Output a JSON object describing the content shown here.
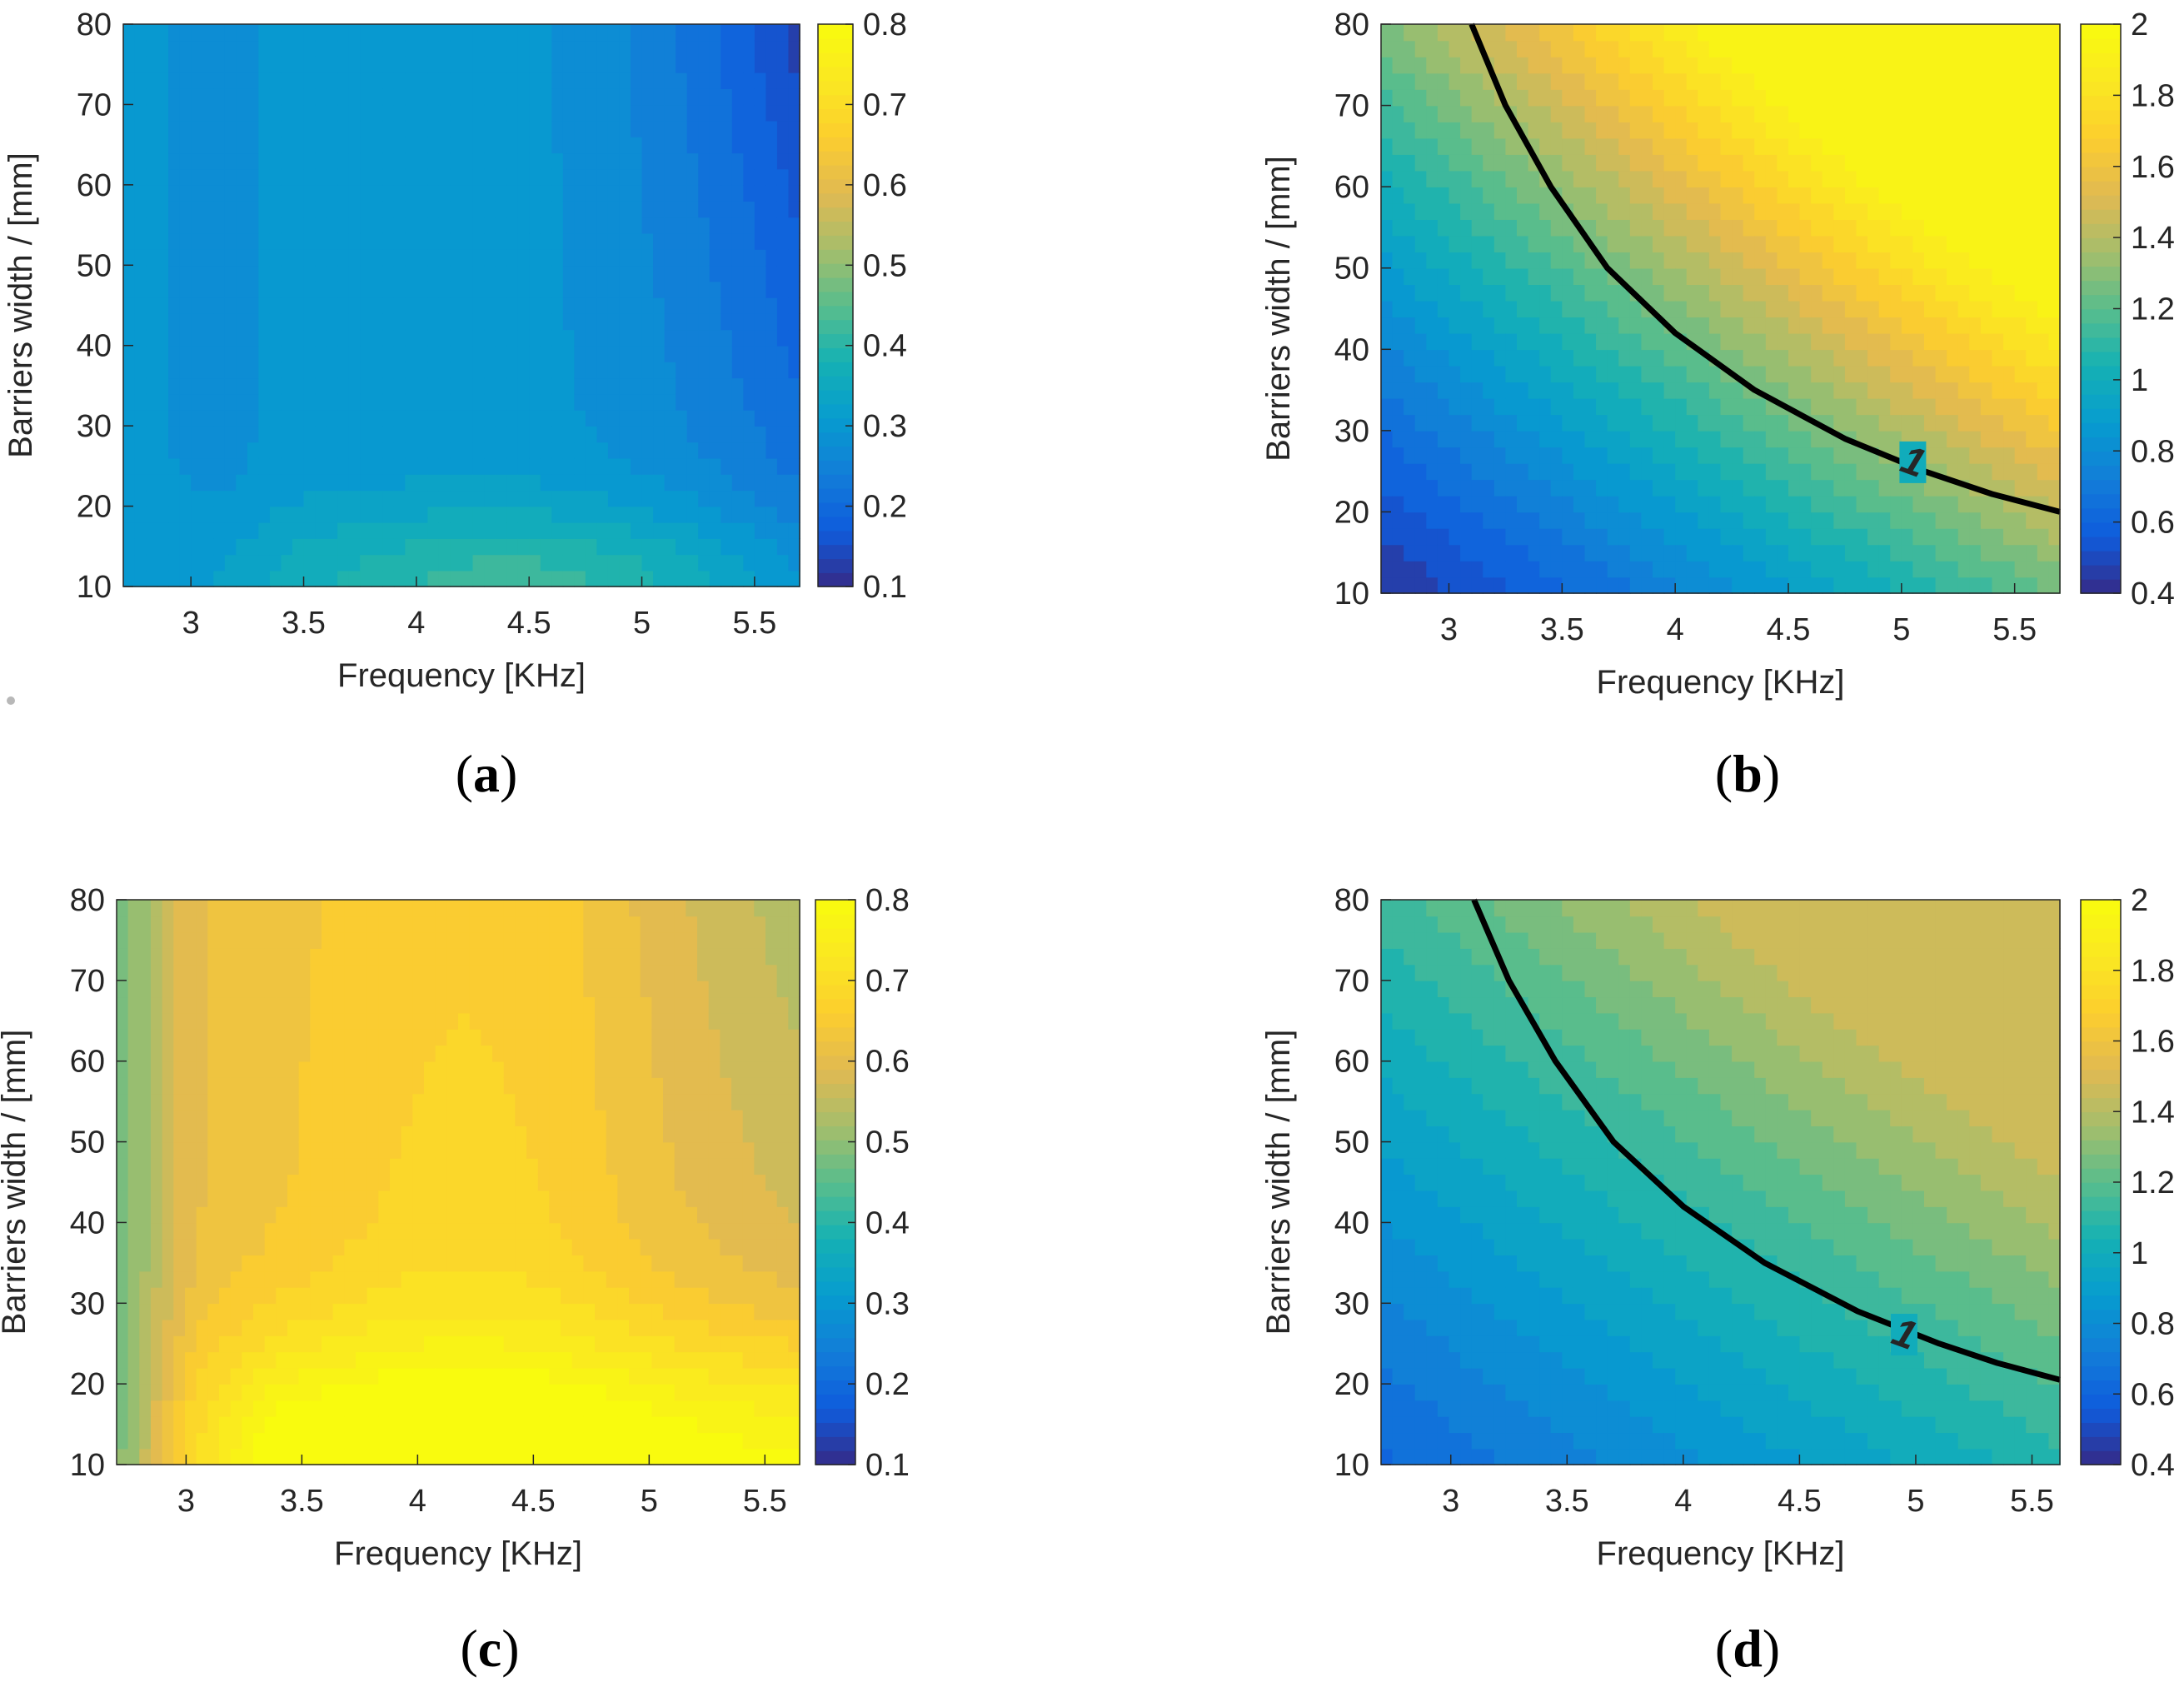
{
  "chart_data": [
    {
      "id": "a",
      "type": "heatmap",
      "subtype": "filled-contour",
      "caption": "(a)",
      "xlabel": "Frequency [KHz]",
      "ylabel": "Barriers width / [mm]",
      "xlim": [
        2.7,
        5.7
      ],
      "ylim": [
        10,
        80
      ],
      "xticks": [
        3,
        3.5,
        4,
        4.5,
        5,
        5.5
      ],
      "xtick_labels": [
        "3",
        "3.5",
        "4",
        "4.5",
        "5",
        "5.5"
      ],
      "yticks": [
        10,
        20,
        30,
        40,
        50,
        60,
        70,
        80
      ],
      "ytick_labels": [
        "10",
        "20",
        "30",
        "40",
        "50",
        "60",
        "70",
        "80"
      ],
      "colorbar": {
        "limits": [
          0.1,
          0.8
        ],
        "ticks": [
          0.1,
          0.2,
          0.3,
          0.4,
          0.5,
          0.6,
          0.7,
          0.8
        ],
        "tick_labels": [
          "0.1",
          "0.2",
          "0.3",
          "0.4",
          "0.5",
          "0.6",
          "0.7",
          "0.8"
        ],
        "colormap": "parula"
      },
      "approx_values": [
        {
          "frequency": 2.8,
          "width": 10,
          "value": 0.33
        },
        {
          "frequency": 4.5,
          "width": 12,
          "value": 0.42
        },
        {
          "frequency": 4.0,
          "width": 50,
          "value": 0.3
        },
        {
          "frequency": 5.7,
          "width": 80,
          "value": 0.13
        }
      ],
      "highlight_contour": null
    },
    {
      "id": "b",
      "type": "heatmap",
      "subtype": "filled-contour",
      "caption": "(b)",
      "xlabel": "Frequency [KHz]",
      "ylabel": "Barriers width / [mm]",
      "xlim": [
        2.7,
        5.7
      ],
      "ylim": [
        10,
        80
      ],
      "xticks": [
        3,
        3.5,
        4,
        4.5,
        5,
        5.5
      ],
      "xtick_labels": [
        "3",
        "3.5",
        "4",
        "4.5",
        "5",
        "5.5"
      ],
      "yticks": [
        10,
        20,
        30,
        40,
        50,
        60,
        70,
        80
      ],
      "ytick_labels": [
        "10",
        "20",
        "30",
        "40",
        "50",
        "60",
        "70",
        "80"
      ],
      "colorbar": {
        "limits": [
          0.4,
          2.0
        ],
        "ticks": [
          0.4,
          0.6,
          0.8,
          1.0,
          1.2,
          1.4,
          1.6,
          1.8,
          2.0
        ],
        "tick_labels": [
          "0.4",
          "0.6",
          "0.8",
          "1",
          "1.2",
          "1.4",
          "1.6",
          "1.8",
          "2"
        ],
        "colormap": "parula"
      },
      "approx_values": [
        {
          "frequency": 2.7,
          "width": 10,
          "value": 0.45
        },
        {
          "frequency": 4.0,
          "width": 40,
          "value": 1.0
        },
        {
          "frequency": 5.2,
          "width": 78,
          "value": 2.0
        }
      ],
      "highlight_contour": {
        "level": 1,
        "label": "1",
        "label_at": [
          5.05,
          26
        ],
        "points": [
          [
            3.1,
            80
          ],
          [
            3.25,
            70
          ],
          [
            3.45,
            60
          ],
          [
            3.7,
            50
          ],
          [
            4.0,
            42
          ],
          [
            4.35,
            35
          ],
          [
            4.75,
            29
          ],
          [
            5.1,
            25
          ],
          [
            5.4,
            22.2
          ],
          [
            5.7,
            20
          ]
        ]
      }
    },
    {
      "id": "c",
      "type": "heatmap",
      "subtype": "filled-contour",
      "caption": "(c)",
      "xlabel": "Frequency [KHz]",
      "ylabel": "Barriers width / [mm]",
      "xlim": [
        2.7,
        5.65
      ],
      "ylim": [
        10,
        80
      ],
      "xticks": [
        3,
        3.5,
        4,
        4.5,
        5,
        5.5
      ],
      "xtick_labels": [
        "3",
        "3.5",
        "4",
        "4.5",
        "5",
        "5.5"
      ],
      "yticks": [
        10,
        20,
        30,
        40,
        50,
        60,
        70,
        80
      ],
      "ytick_labels": [
        "10",
        "20",
        "30",
        "40",
        "50",
        "60",
        "70",
        "80"
      ],
      "colorbar": {
        "limits": [
          0.1,
          0.8
        ],
        "ticks": [
          0.1,
          0.2,
          0.3,
          0.4,
          0.5,
          0.6,
          0.7,
          0.8
        ],
        "tick_labels": [
          "0.1",
          "0.2",
          "0.3",
          "0.4",
          "0.5",
          "0.6",
          "0.7",
          "0.8"
        ],
        "colormap": "parula"
      },
      "approx_values": [
        {
          "frequency": 2.7,
          "width": 10,
          "value": 0.45
        },
        {
          "frequency": 4.5,
          "width": 11,
          "value": 0.79
        },
        {
          "frequency": 4.2,
          "width": 60,
          "value": 0.68
        },
        {
          "frequency": 5.65,
          "width": 80,
          "value": 0.58
        }
      ],
      "highlight_contour": null
    },
    {
      "id": "d",
      "type": "heatmap",
      "subtype": "filled-contour",
      "caption": "(d)",
      "xlabel": "Frequency [KHz]",
      "ylabel": "Barriers width / [mm]",
      "xlim": [
        2.7,
        5.62
      ],
      "ylim": [
        10,
        80
      ],
      "xticks": [
        3,
        3.5,
        4,
        4.5,
        5,
        5.5
      ],
      "xtick_labels": [
        "3",
        "3.5",
        "4",
        "4.5",
        "5",
        "5.5"
      ],
      "yticks": [
        10,
        20,
        30,
        40,
        50,
        60,
        70,
        80
      ],
      "ytick_labels": [
        "10",
        "20",
        "30",
        "40",
        "50",
        "60",
        "70",
        "80"
      ],
      "colorbar": {
        "limits": [
          0.4,
          2.0
        ],
        "ticks": [
          0.4,
          0.6,
          0.8,
          1.0,
          1.2,
          1.4,
          1.6,
          1.8,
          2.0
        ],
        "tick_labels": [
          "0.4",
          "0.6",
          "0.8",
          "1",
          "1.2",
          "1.4",
          "1.6",
          "1.8",
          "2"
        ],
        "colormap": "parula"
      },
      "approx_values": [
        {
          "frequency": 2.7,
          "width": 10,
          "value": 0.6
        },
        {
          "frequency": 4.0,
          "width": 40,
          "value": 1.0
        },
        {
          "frequency": 5.6,
          "width": 80,
          "value": 1.45
        }
      ],
      "highlight_contour": {
        "level": 1,
        "label": "1",
        "label_at": [
          4.95,
          26
        ],
        "points": [
          [
            3.1,
            80
          ],
          [
            3.25,
            70
          ],
          [
            3.45,
            60
          ],
          [
            3.7,
            50
          ],
          [
            4.0,
            42
          ],
          [
            4.35,
            35
          ],
          [
            4.75,
            29
          ],
          [
            5.1,
            25
          ],
          [
            5.35,
            22.6
          ],
          [
            5.62,
            20.5
          ]
        ]
      }
    }
  ]
}
